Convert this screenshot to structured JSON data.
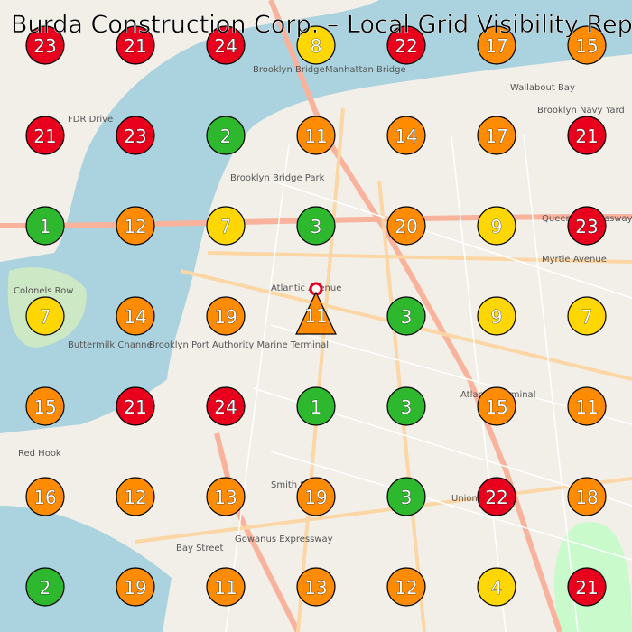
{
  "header": {
    "title": "Burda Construction Corp. – Local Grid Visibility Report"
  },
  "grid": {
    "rows": [
      [
        23,
        21,
        24,
        8,
        22,
        17,
        15
      ],
      [
        21,
        23,
        2,
        11,
        14,
        17,
        21
      ],
      [
        1,
        12,
        7,
        3,
        20,
        9,
        23
      ],
      [
        7,
        14,
        19,
        11,
        3,
        9,
        7
      ],
      [
        15,
        21,
        24,
        1,
        3,
        15,
        11
      ],
      [
        16,
        12,
        13,
        19,
        3,
        22,
        18
      ],
      [
        2,
        19,
        11,
        13,
        12,
        4,
        21
      ]
    ],
    "colors": [
      [
        "#e8001c",
        "#e8001c",
        "#e8001c",
        "#ffd700",
        "#e8001c",
        "#ff8c00",
        "#ff8c00"
      ],
      [
        "#e8001c",
        "#e8001c",
        "#2db82d",
        "#ff8c00",
        "#ff8c00",
        "#ff8c00",
        "#e8001c"
      ],
      [
        "#2db82d",
        "#ff8c00",
        "#ffd700",
        "#2db82d",
        "#ff8c00",
        "#ffd700",
        "#e8001c"
      ],
      [
        "#ffd700",
        "#ff8c00",
        "#ff8c00",
        "#ff8c00",
        "#2db82d",
        "#ffd700",
        "#ffd700"
      ],
      [
        "#ff8c00",
        "#e8001c",
        "#e8001c",
        "#2db82d",
        "#2db82d",
        "#ff8c00",
        "#ff8c00"
      ],
      [
        "#ff8c00",
        "#ff8c00",
        "#ff8c00",
        "#ff8c00",
        "#2db82d",
        "#e8001c",
        "#ff8c00"
      ],
      [
        "#2db82d",
        "#ff8c00",
        "#ff8c00",
        "#ff8c00",
        "#ff8c00",
        "#ffd700",
        "#e8001c"
      ]
    ]
  },
  "map_labels": [
    "Brooklyn Bridge",
    "Manhattan Bridge",
    "Wallabout Bay",
    "Brooklyn Navy Yard",
    "Atlantic Avenue",
    "Myrtle Avenue",
    "Colonels Row",
    "Buttermilk Channel",
    "Brooklyn Port Authority Marine Terminal",
    "Red Hook",
    "Union Street",
    "Smith Street",
    "Gowanus Expressway",
    "Bay Street",
    "Queens Expressway",
    "FDR Drive",
    "Atlantic Terminal",
    "Brooklyn Bridge Park"
  ]
}
